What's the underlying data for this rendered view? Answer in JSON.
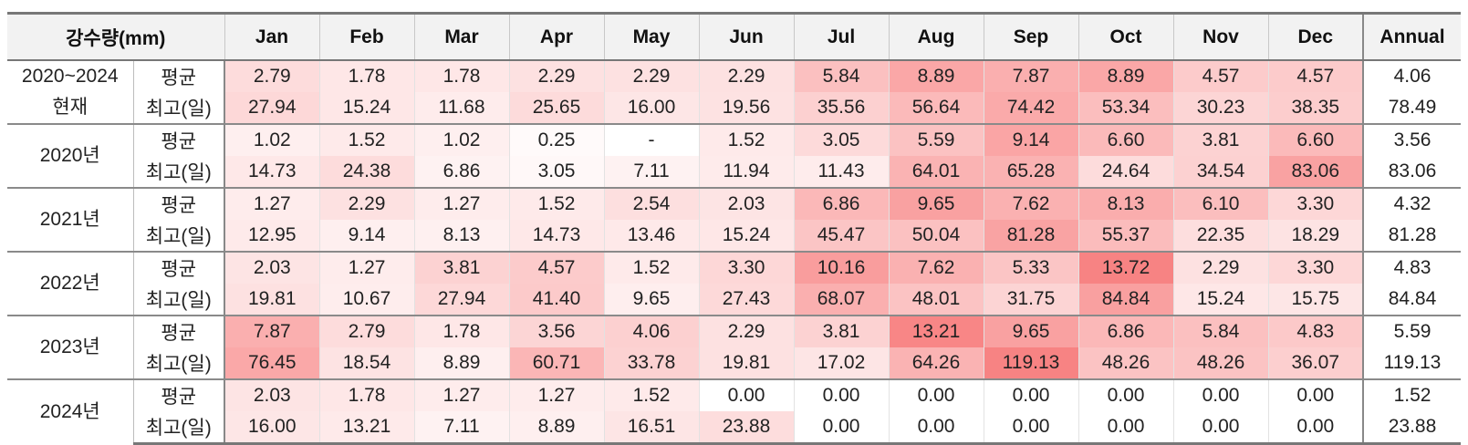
{
  "header": {
    "corner": "강수량(mm)",
    "months": [
      "Jan",
      "Feb",
      "Mar",
      "Apr",
      "May",
      "Jun",
      "Jul",
      "Aug",
      "Sep",
      "Oct",
      "Nov",
      "Dec"
    ],
    "annual": "Annual"
  },
  "stat_labels": {
    "avg": "평균",
    "max": "최고(일)"
  },
  "heat_colors": {
    "low": "#ffffff",
    "high": "#f77c7c"
  },
  "groups": [
    {
      "label": "2020~2024\n현재",
      "avg": {
        "values": [
          "2.79",
          "1.78",
          "1.78",
          "2.29",
          "2.29",
          "2.29",
          "5.84",
          "8.89",
          "7.87",
          "8.89",
          "4.57",
          "4.57"
        ],
        "annual": "4.06"
      },
      "max": {
        "values": [
          "27.94",
          "15.24",
          "11.68",
          "25.65",
          "16.00",
          "19.56",
          "35.56",
          "56.64",
          "74.42",
          "53.34",
          "30.23",
          "38.35"
        ],
        "annual": "78.49"
      }
    },
    {
      "label": "2020년",
      "avg": {
        "values": [
          "1.02",
          "1.52",
          "1.02",
          "0.25",
          "-",
          "1.52",
          "3.05",
          "5.59",
          "9.14",
          "6.60",
          "3.81",
          "6.60"
        ],
        "annual": "3.56"
      },
      "max": {
        "values": [
          "14.73",
          "24.38",
          "6.86",
          "3.05",
          "7.11",
          "11.94",
          "11.43",
          "64.01",
          "65.28",
          "24.64",
          "34.54",
          "83.06"
        ],
        "annual": "83.06"
      }
    },
    {
      "label": "2021년",
      "avg": {
        "values": [
          "1.27",
          "2.29",
          "1.27",
          "1.52",
          "2.54",
          "2.03",
          "6.86",
          "9.65",
          "7.62",
          "8.13",
          "6.10",
          "3.30"
        ],
        "annual": "4.32"
      },
      "max": {
        "values": [
          "12.95",
          "9.14",
          "8.13",
          "14.73",
          "13.46",
          "15.24",
          "45.47",
          "50.04",
          "81.28",
          "55.37",
          "22.35",
          "18.29"
        ],
        "annual": "81.28"
      }
    },
    {
      "label": "2022년",
      "avg": {
        "values": [
          "2.03",
          "1.27",
          "3.81",
          "4.57",
          "1.52",
          "3.30",
          "10.16",
          "7.62",
          "5.33",
          "13.72",
          "2.29",
          "3.30"
        ],
        "annual": "4.83"
      },
      "max": {
        "values": [
          "19.81",
          "10.67",
          "27.94",
          "41.40",
          "9.65",
          "27.43",
          "68.07",
          "48.01",
          "31.75",
          "84.84",
          "15.24",
          "15.75"
        ],
        "annual": "84.84"
      }
    },
    {
      "label": "2023년",
      "avg": {
        "values": [
          "7.87",
          "2.79",
          "1.78",
          "3.56",
          "4.06",
          "2.29",
          "3.81",
          "13.21",
          "9.65",
          "6.86",
          "5.84",
          "4.83"
        ],
        "annual": "5.59"
      },
      "max": {
        "values": [
          "76.45",
          "18.54",
          "8.89",
          "60.71",
          "33.78",
          "19.81",
          "17.02",
          "64.26",
          "119.13",
          "48.26",
          "48.26",
          "36.07"
        ],
        "annual": "119.13"
      }
    },
    {
      "label": "2024년",
      "avg": {
        "values": [
          "2.03",
          "1.78",
          "1.27",
          "1.27",
          "1.52",
          "0.00",
          "0.00",
          "0.00",
          "0.00",
          "0.00",
          "0.00",
          "0.00"
        ],
        "annual": "1.52"
      },
      "max": {
        "values": [
          "16.00",
          "13.21",
          "7.11",
          "8.89",
          "16.51",
          "23.88",
          "0.00",
          "0.00",
          "0.00",
          "0.00",
          "0.00",
          "0.00"
        ],
        "annual": "23.88"
      }
    }
  ]
}
